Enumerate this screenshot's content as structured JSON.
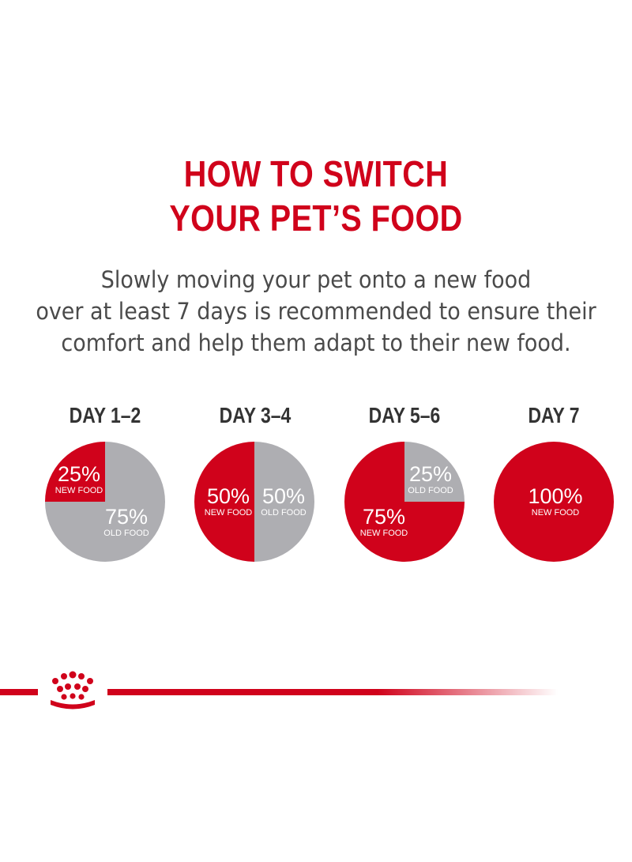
{
  "title": {
    "line1": "HOW TO SWITCH",
    "line2": "YOUR PET’S FOOD"
  },
  "subtitle": {
    "line1": "Slowly moving your pet onto a new food",
    "line2": "over at least 7 days is recommended to ensure their",
    "line3": "comfort and help them adapt to their new food."
  },
  "colors": {
    "new_food": "#d0021b",
    "old_food": "#aeaeb2",
    "title": "#d0021b",
    "text": "#4a4a4a"
  },
  "chart_data": {
    "type": "pie",
    "title": "HOW TO SWITCH YOUR PET’S FOOD",
    "charts": [
      {
        "label": "DAY 1–2",
        "slices": [
          {
            "name": "NEW FOOD",
            "value": 25,
            "text": "25%"
          },
          {
            "name": "OLD FOOD",
            "value": 75,
            "text": "75%"
          }
        ]
      },
      {
        "label": "DAY 3–4",
        "slices": [
          {
            "name": "NEW FOOD",
            "value": 50,
            "text": "50%"
          },
          {
            "name": "OLD FOOD",
            "value": 50,
            "text": "50%"
          }
        ]
      },
      {
        "label": "DAY 5–6",
        "slices": [
          {
            "name": "NEW FOOD",
            "value": 75,
            "text": "75%"
          },
          {
            "name": "OLD FOOD",
            "value": 25,
            "text": "25%"
          }
        ]
      },
      {
        "label": "DAY 7",
        "slices": [
          {
            "name": "NEW FOOD",
            "value": 100,
            "text": "100%"
          }
        ]
      }
    ]
  },
  "footer": {
    "logo_icon": "crown-icon"
  }
}
